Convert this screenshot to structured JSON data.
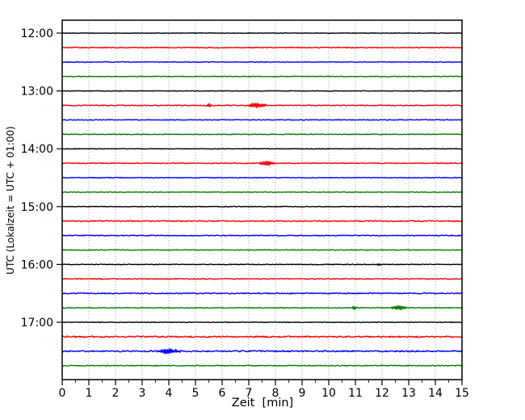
{
  "window": {
    "background": "#ffffff"
  },
  "chart_data": {
    "type": "line",
    "variant": "seismogram-helicorder-dayplot",
    "title": "",
    "xlabel": "Zeit  [min]",
    "ylabel": "UTC (Lokalzeit = UTC + 01:00)",
    "xlim": [
      0,
      15
    ],
    "x_ticks": [
      0,
      1,
      2,
      3,
      4,
      5,
      6,
      7,
      8,
      9,
      10,
      11,
      12,
      13,
      14,
      15
    ],
    "x_minor_tick_step": 0.5,
    "grid": {
      "vertical_lines_min": [
        1,
        2,
        3,
        4,
        5,
        6,
        7,
        8,
        9,
        10,
        11,
        12,
        13,
        14
      ],
      "style": "dotted",
      "color": "#8c8c8c"
    },
    "y_hour_labels": [
      "12:00",
      "13:00",
      "14:00",
      "15:00",
      "16:00",
      "17:00"
    ],
    "trace_interval_minutes": 15,
    "axis_color": "#000000",
    "color_cycle": [
      "#000000",
      "#ff0000",
      "#0000ff",
      "#008000"
    ],
    "traces": [
      {
        "time": "12:00",
        "color": "#000000",
        "noise": 0.35,
        "events": []
      },
      {
        "time": "12:15",
        "color": "#ff0000",
        "noise": 0.5,
        "events": []
      },
      {
        "time": "12:30",
        "color": "#0000ff",
        "noise": 0.45,
        "events": []
      },
      {
        "time": "12:45",
        "color": "#008000",
        "noise": 0.4,
        "events": []
      },
      {
        "time": "13:00",
        "color": "#000000",
        "noise": 0.35,
        "events": []
      },
      {
        "time": "13:15",
        "color": "#ff0000",
        "noise": 0.55,
        "events": [
          {
            "start": 5.42,
            "end": 5.58,
            "amp": 3.5
          },
          {
            "start": 6.9,
            "end": 7.7,
            "amp": 2.8
          }
        ]
      },
      {
        "time": "13:30",
        "color": "#0000ff",
        "noise": 0.45,
        "events": []
      },
      {
        "time": "13:45",
        "color": "#008000",
        "noise": 0.4,
        "events": []
      },
      {
        "time": "14:00",
        "color": "#000000",
        "noise": 0.35,
        "events": []
      },
      {
        "time": "14:15",
        "color": "#ff0000",
        "noise": 0.5,
        "events": [
          {
            "start": 7.35,
            "end": 7.98,
            "amp": 2.8
          }
        ]
      },
      {
        "time": "14:30",
        "color": "#0000ff",
        "noise": 0.45,
        "events": []
      },
      {
        "time": "14:45",
        "color": "#008000",
        "noise": 0.4,
        "events": []
      },
      {
        "time": "15:00",
        "color": "#000000",
        "noise": 0.4,
        "events": []
      },
      {
        "time": "15:15",
        "color": "#ff0000",
        "noise": 0.65,
        "events": []
      },
      {
        "time": "15:30",
        "color": "#0000ff",
        "noise": 0.5,
        "events": []
      },
      {
        "time": "15:45",
        "color": "#008000",
        "noise": 0.45,
        "events": []
      },
      {
        "time": "16:00",
        "color": "#000000",
        "noise": 0.4,
        "events": [
          {
            "start": 11.78,
            "end": 11.95,
            "amp": 1.4
          }
        ]
      },
      {
        "time": "16:15",
        "color": "#ff0000",
        "noise": 0.55,
        "events": []
      },
      {
        "time": "16:30",
        "color": "#0000ff",
        "noise": 0.6,
        "events": []
      },
      {
        "time": "16:45",
        "color": "#008000",
        "noise": 0.45,
        "events": [
          {
            "start": 10.88,
            "end": 11.05,
            "amp": 2.6
          },
          {
            "start": 12.3,
            "end": 12.95,
            "amp": 2.4
          }
        ]
      },
      {
        "time": "17:00",
        "color": "#000000",
        "noise": 0.4,
        "events": []
      },
      {
        "time": "17:15",
        "color": "#ff0000",
        "noise": 0.85,
        "events": []
      },
      {
        "time": "17:30",
        "color": "#0000ff",
        "noise": 0.85,
        "events": [
          {
            "start": 3.55,
            "end": 4.5,
            "amp": 3.2
          }
        ]
      },
      {
        "time": "17:45",
        "color": "#008000",
        "noise": 0.5,
        "events": []
      }
    ]
  }
}
